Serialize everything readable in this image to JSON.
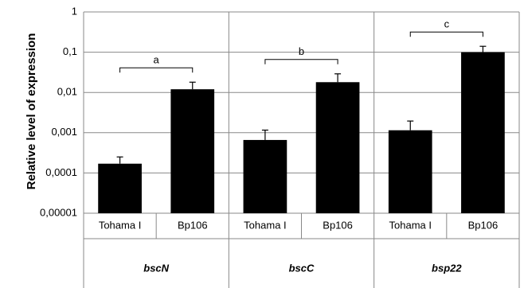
{
  "chart_data": {
    "type": "bar",
    "y_label": "Relative level of expression",
    "categories": [
      "Tohama I",
      "Bp106",
      "Tohama I",
      "Bp106",
      "Tohama I",
      "Bp106"
    ],
    "groups": [
      "bscN",
      "bscC",
      "bsp22"
    ],
    "annotations": [
      "a",
      "b",
      "c"
    ],
    "series": [
      {
        "name": "Relative level of expression",
        "color": "#000000",
        "values": [
          0.00017,
          0.012,
          0.00066,
          0.018,
          0.00115,
          0.1
        ],
        "errors": [
          8e-05,
          0.006,
          0.0005,
          0.011,
          0.0008,
          0.04
        ]
      }
    ],
    "log_y": true,
    "ylim": [
      1e-05,
      1
    ],
    "yticks": [
      1,
      {
        "value": 0.1,
        "label": "0,1"
      },
      {
        "value": 0.01,
        "label": "0,01"
      },
      {
        "value": 0.001,
        "label": "0,001"
      },
      {
        "value": 0.0001,
        "label": "0,0001"
      },
      {
        "value": 1e-05,
        "label": "0,00001"
      }
    ],
    "grid": true
  }
}
